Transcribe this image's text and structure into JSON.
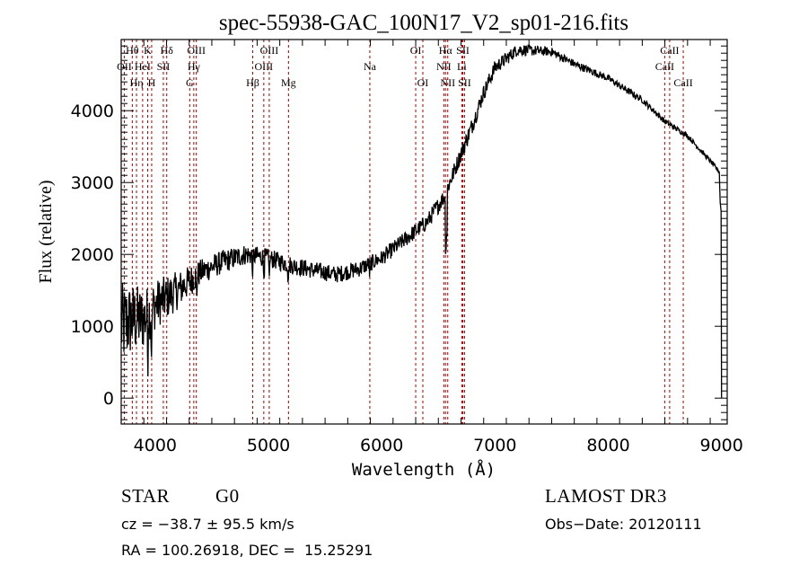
{
  "chart_data": {
    "type": "line",
    "title": "spec-55938-GAC_100N17_V2_sp01-216.fits",
    "xlabel": "Wavelength (Å)",
    "ylabel": "Flux (relative)",
    "xlim": [
      3700,
      9050
    ],
    "ylim": [
      -360,
      4990
    ],
    "xticks": [
      4000,
      5000,
      6000,
      7000,
      8000,
      9000
    ],
    "xtick_labels": [
      "4000",
      "5000",
      "6000",
      "7000",
      "8000",
      "9000"
    ],
    "yticks": [
      0,
      1000,
      2000,
      3000,
      4000
    ],
    "ytick_labels": [
      "0",
      "1000",
      "2000",
      "3000",
      "4000"
    ],
    "grid": false,
    "series": [
      {
        "name": "spectrum",
        "color": "#000000",
        "continuum_points": [
          [
            3700,
            1000
          ],
          [
            3800,
            1100
          ],
          [
            3900,
            1100
          ],
          [
            4000,
            1300
          ],
          [
            4200,
            1500
          ],
          [
            4400,
            1750
          ],
          [
            4600,
            1900
          ],
          [
            4800,
            2000
          ],
          [
            5000,
            1950
          ],
          [
            5200,
            1850
          ],
          [
            5400,
            1780
          ],
          [
            5600,
            1720
          ],
          [
            5800,
            1800
          ],
          [
            6000,
            1950
          ],
          [
            6200,
            2200
          ],
          [
            6400,
            2450
          ],
          [
            6550,
            2800
          ],
          [
            6700,
            3400
          ],
          [
            6800,
            3800
          ],
          [
            6900,
            4250
          ],
          [
            7000,
            4600
          ],
          [
            7200,
            4850
          ],
          [
            7500,
            4820
          ],
          [
            7700,
            4650
          ],
          [
            8000,
            4450
          ],
          [
            8300,
            4150
          ],
          [
            8500,
            3850
          ],
          [
            8700,
            3650
          ],
          [
            8900,
            3300
          ],
          [
            8980,
            3150
          ],
          [
            8990,
            2600
          ],
          [
            9000,
            0
          ]
        ],
        "noise_amplitude": [
          [
            3700,
            600
          ],
          [
            4000,
            350
          ],
          [
            4400,
            180
          ],
          [
            5000,
            130
          ],
          [
            6000,
            110
          ],
          [
            6800,
            120
          ],
          [
            7500,
            60
          ],
          [
            8500,
            40
          ],
          [
            9000,
            30
          ]
        ]
      }
    ],
    "line_color": "#aa0000",
    "spectral_lines": [
      {
        "label": "OII",
        "wavelength": 3727,
        "row": 2
      },
      {
        "label": "Hθ",
        "wavelength": 3798,
        "row": 1
      },
      {
        "label": "Hη",
        "wavelength": 3835,
        "row": 3
      },
      {
        "label": "HeI",
        "wavelength": 3889,
        "row": 2
      },
      {
        "label": "K",
        "wavelength": 3934,
        "row": 1
      },
      {
        "label": "H",
        "wavelength": 3969,
        "row": 3
      },
      {
        "label": "SII",
        "wavelength": 4072,
        "row": 2
      },
      {
        "label": "Hδ",
        "wavelength": 4102,
        "row": 1
      },
      {
        "label": "G",
        "wavelength": 4305,
        "row": 3
      },
      {
        "label": "Hγ",
        "wavelength": 4341,
        "row": 2
      },
      {
        "label": "OIII",
        "wavelength": 4363,
        "row": 1
      },
      {
        "label": "Hβ",
        "wavelength": 4861,
        "row": 3
      },
      {
        "label": "OIII",
        "wavelength": 4959,
        "row": 2
      },
      {
        "label": "OIII",
        "wavelength": 5007,
        "row": 1
      },
      {
        "label": "Mg",
        "wavelength": 5177,
        "row": 3
      },
      {
        "label": "Na",
        "wavelength": 5895,
        "row": 2
      },
      {
        "label": "OI",
        "wavelength": 6300,
        "row": 1
      },
      {
        "label": "OI",
        "wavelength": 6363,
        "row": 3
      },
      {
        "label": "NII",
        "wavelength": 6548,
        "row": 2
      },
      {
        "label": "Hα",
        "wavelength": 6563,
        "row": 1
      },
      {
        "label": "NII",
        "wavelength": 6583,
        "row": 3
      },
      {
        "label": "Li",
        "wavelength": 6707,
        "row": 2
      },
      {
        "label": "SII",
        "wavelength": 6716,
        "row": 1
      },
      {
        "label": "SII",
        "wavelength": 6731,
        "row": 3
      },
      {
        "label": "CaII",
        "wavelength": 8498,
        "row": 2
      },
      {
        "label": "CaII",
        "wavelength": 8542,
        "row": 1
      },
      {
        "label": "CaII",
        "wavelength": 8662,
        "row": 3
      }
    ]
  },
  "info": {
    "class": "STAR",
    "subclass": "G0",
    "survey": "LAMOST DR3",
    "redshift": "cz = −38.7 ± 95.5 km/s",
    "obs_date": "Obs−Date: 20120111",
    "coords": "RA = 100.26918, DEC =  15.25291"
  }
}
